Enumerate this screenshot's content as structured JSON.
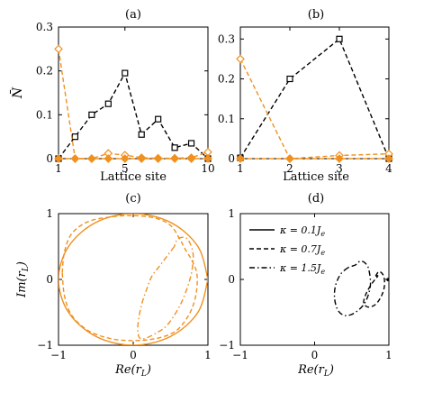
{
  "colors": {
    "orange": "#F0901E",
    "black": "#000000"
  },
  "panels": [
    {
      "label": "(a)",
      "chart_data": {
        "type": "line",
        "xlabel": "Lattice site",
        "ylabel": "N̄",
        "xlim": [
          1,
          10
        ],
        "ylim": [
          0,
          0.3
        ],
        "xticks": [
          1,
          5,
          10
        ],
        "xtick_labels": [
          "1",
          "5",
          "10"
        ],
        "yticks": [
          0,
          0.1,
          0.2,
          0.3
        ],
        "ytick_labels": [
          "0",
          "0.1",
          "0.2",
          "0.3"
        ],
        "series": [
          {
            "color": "black",
            "dash": "dashed",
            "marker": "square",
            "x": [
              1,
              2,
              3,
              4,
              5,
              6,
              7,
              8,
              9,
              10
            ],
            "y": [
              0.0,
              0.05,
              0.1,
              0.125,
              0.195,
              0.055,
              0.09,
              0.025,
              0.035,
              0.0
            ]
          },
          {
            "color": "orange",
            "dash": "dashed",
            "marker": "diamond-open",
            "x": [
              1,
              2,
              3,
              4,
              5,
              6,
              7,
              8,
              9,
              10
            ],
            "y": [
              0.25,
              0.0,
              0.0,
              0.012,
              0.008,
              0.002,
              0.001,
              0.001,
              0.002,
              0.015
            ]
          },
          {
            "color": "orange",
            "dash": "dashed",
            "marker": "diamond-filled",
            "x": [
              1,
              2,
              3,
              4,
              5,
              6,
              7,
              8,
              9,
              10
            ],
            "y": [
              0.0,
              0.0,
              0.0,
              0.0,
              0.0,
              0.0,
              0.0,
              0.0,
              0.0,
              0.0
            ]
          }
        ]
      }
    },
    {
      "label": "(b)",
      "chart_data": {
        "type": "line",
        "xlabel": "Lattice site",
        "ylabel": "",
        "xlim": [
          1,
          4
        ],
        "ylim": [
          0,
          0.33
        ],
        "xticks": [
          1,
          2,
          3,
          4
        ],
        "xtick_labels": [
          "1",
          "2",
          "3",
          "4"
        ],
        "yticks": [
          0,
          0.1,
          0.2,
          0.3
        ],
        "ytick_labels": [
          "0",
          "0.1",
          "0.2",
          "0.3"
        ],
        "series": [
          {
            "color": "black",
            "dash": "dashed",
            "marker": "square",
            "x": [
              1,
              2,
              3,
              4
            ],
            "y": [
              0.002,
              0.2,
              0.3,
              0.0
            ]
          },
          {
            "color": "orange",
            "dash": "dashed",
            "marker": "diamond-open",
            "x": [
              1,
              2,
              3,
              4
            ],
            "y": [
              0.25,
              0.0,
              0.008,
              0.012
            ]
          },
          {
            "color": "orange",
            "dash": "dashed",
            "marker": "diamond-filled",
            "x": [
              1,
              2,
              3,
              4
            ],
            "y": [
              0.0,
              0.0,
              0.0,
              0.0
            ]
          }
        ]
      }
    },
    {
      "label": "(c)",
      "chart_data": {
        "type": "line",
        "xlabel": "Re(r_L)",
        "ylabel": "Im(r_L)",
        "xlim": [
          -1,
          1
        ],
        "ylim": [
          -1,
          1
        ],
        "xticks": [
          -1,
          0,
          1
        ],
        "xtick_labels": [
          "−1",
          "0",
          "1"
        ],
        "yticks": [
          -1,
          0,
          1
        ],
        "ytick_labels": [
          "−1",
          "0",
          "1"
        ],
        "series": [
          {
            "color": "orange",
            "dash": "solid",
            "x": [
              1.0,
              0.866,
              0.5,
              0.0,
              -0.5,
              -0.866,
              -1.0,
              -0.866,
              -0.5,
              0.0,
              0.5,
              0.866,
              1.0
            ],
            "y": [
              0.0,
              0.5,
              0.866,
              1.0,
              0.866,
              0.5,
              0.0,
              -0.5,
              -0.866,
              -1.0,
              -0.866,
              -0.5,
              0.0
            ]
          },
          {
            "color": "orange",
            "dash": "dashed",
            "x": [
              -0.95,
              -0.92,
              -0.82,
              -0.6,
              -0.3,
              0.0,
              0.3,
              0.5,
              0.62,
              0.7,
              0.78,
              0.85,
              0.85,
              0.8,
              0.7,
              0.55,
              0.3,
              0.0,
              -0.3,
              -0.6,
              -0.82,
              -0.92,
              -0.95
            ],
            "y": [
              0.1,
              0.42,
              0.7,
              0.88,
              0.95,
              0.97,
              0.93,
              0.82,
              0.62,
              0.45,
              0.3,
              0.1,
              -0.15,
              -0.4,
              -0.62,
              -0.8,
              -0.9,
              -0.93,
              -0.9,
              -0.78,
              -0.55,
              -0.25,
              0.1
            ]
          },
          {
            "color": "orange",
            "dash": "dashdot",
            "x": [
              0.55,
              0.45,
              0.35,
              0.25,
              0.18,
              0.12,
              0.08,
              0.06,
              0.08,
              0.15,
              0.3,
              0.45,
              0.6,
              0.7,
              0.78,
              0.8,
              0.72,
              0.6,
              0.55
            ],
            "y": [
              0.5,
              0.35,
              0.2,
              0.05,
              -0.15,
              -0.35,
              -0.55,
              -0.75,
              -0.88,
              -0.9,
              -0.82,
              -0.7,
              -0.45,
              -0.2,
              0.1,
              0.4,
              0.62,
              0.62,
              0.5
            ]
          }
        ]
      }
    },
    {
      "label": "(d)",
      "chart_data": {
        "type": "line",
        "xlabel": "Re(r_L)",
        "ylabel": "",
        "xlim": [
          -1,
          1
        ],
        "ylim": [
          -1,
          1
        ],
        "xticks": [
          -1,
          0,
          1
        ],
        "xtick_labels": [
          "−1",
          "0",
          "1"
        ],
        "yticks": [
          -1,
          0,
          1
        ],
        "ytick_labels": [
          "−1",
          "0",
          "1"
        ],
        "legend_position": "top-left",
        "series": [
          {
            "name": "κ = 0.1J_e",
            "color": "black",
            "dash": "solid",
            "x": [
              0.985,
              1.0,
              0.985,
              0.975,
              0.985
            ],
            "y": [
              0.02,
              0.0,
              -0.02,
              0.0,
              0.02
            ]
          },
          {
            "name": "κ = 0.7J_e",
            "color": "black",
            "dash": "dashed",
            "x": [
              0.82,
              0.87,
              0.93,
              0.94,
              0.9,
              0.82,
              0.72,
              0.66,
              0.7,
              0.78,
              0.85,
              0.82
            ],
            "y": [
              0.05,
              0.12,
              0.05,
              -0.1,
              -0.25,
              -0.38,
              -0.42,
              -0.35,
              -0.2,
              -0.05,
              0.05,
              0.05
            ]
          },
          {
            "name": "κ = 1.5J_e",
            "color": "black",
            "dash": "dashdot",
            "x": [
              0.45,
              0.35,
              0.28,
              0.27,
              0.32,
              0.42,
              0.55,
              0.68,
              0.75,
              0.73,
              0.68,
              0.62,
              0.58,
              0.55,
              0.5,
              0.45
            ],
            "y": [
              0.18,
              0.08,
              -0.1,
              -0.3,
              -0.48,
              -0.55,
              -0.5,
              -0.35,
              -0.1,
              0.15,
              0.25,
              0.28,
              0.25,
              0.22,
              0.2,
              0.18
            ]
          }
        ]
      }
    }
  ]
}
